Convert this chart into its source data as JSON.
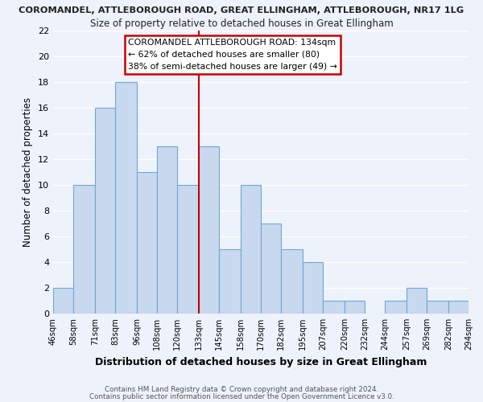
{
  "title_top": "COROMANDEL, ATTLEBOROUGH ROAD, GREAT ELLINGHAM, ATTLEBOROUGH, NR17 1LG",
  "title_main": "Size of property relative to detached houses in Great Ellingham",
  "xlabel": "Distribution of detached houses by size in Great Ellingham",
  "ylabel": "Number of detached properties",
  "bar_edges": [
    46,
    58,
    71,
    83,
    96,
    108,
    120,
    133,
    145,
    158,
    170,
    182,
    195,
    207,
    220,
    232,
    244,
    257,
    269,
    282,
    294
  ],
  "bar_heights": [
    2,
    10,
    16,
    18,
    11,
    13,
    10,
    13,
    5,
    10,
    7,
    5,
    4,
    1,
    1,
    0,
    1,
    2,
    1,
    1
  ],
  "bar_color": "#c8d8ee",
  "bar_edgecolor": "#6aaad4",
  "reference_line_x": 133,
  "annotation_title": "COROMANDEL ATTLEBOROUGH ROAD: 134sqm",
  "annotation_line1": "← 62% of detached houses are smaller (80)",
  "annotation_line2": "38% of semi-detached houses are larger (49) →",
  "ylim": [
    0,
    22
  ],
  "yticks": [
    0,
    2,
    4,
    6,
    8,
    10,
    12,
    14,
    16,
    18,
    20,
    22
  ],
  "tick_labels": [
    "46sqm",
    "58sqm",
    "71sqm",
    "83sqm",
    "96sqm",
    "108sqm",
    "120sqm",
    "133sqm",
    "145sqm",
    "158sqm",
    "170sqm",
    "182sqm",
    "195sqm",
    "207sqm",
    "220sqm",
    "232sqm",
    "244sqm",
    "257sqm",
    "269sqm",
    "282sqm",
    "294sqm"
  ],
  "footnote1": "Contains HM Land Registry data © Crown copyright and database right 2024.",
  "footnote2": "Contains public sector information licensed under the Open Government Licence v3.0.",
  "background_color": "#eef2fb",
  "grid_color": "#ffffff",
  "annotation_box_color": "#ffffff",
  "annotation_box_edgecolor": "#cc0000",
  "ref_line_color": "#cc0000",
  "title_bg": "#ffffff"
}
